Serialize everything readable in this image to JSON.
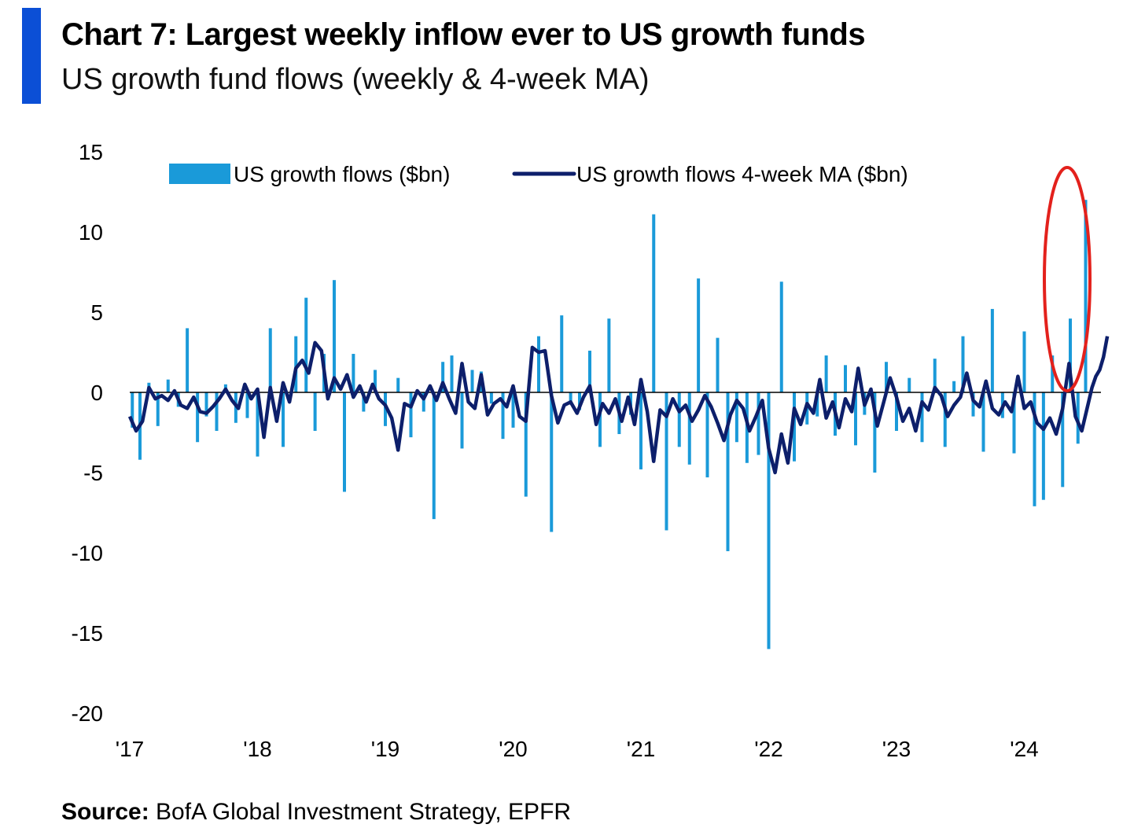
{
  "header": {
    "title": "Chart 7: Largest weekly inflow ever to US growth funds",
    "subtitle": "US growth fund flows (weekly & 4-week MA)"
  },
  "footer": {
    "source_label": "Source:",
    "source_text": " BofA Global Investment Strategy, EPFR"
  },
  "colors": {
    "accent": "#0b4fd6",
    "bars": "#1a9ad9",
    "ma_line": "#0d1f6b",
    "highlight": "#e3211c",
    "zero_line": "#000000"
  },
  "chart_data": {
    "type": "bar",
    "title": "",
    "xlabel": "",
    "ylabel": "",
    "ylim": [
      -20,
      15
    ],
    "yticks": [
      15,
      10,
      5,
      0,
      -5,
      -10,
      -15,
      -20
    ],
    "xticks": [
      "'17",
      "'18",
      "'19",
      "'20",
      "'21",
      "'22",
      "'23",
      "'24"
    ],
    "xlim": [
      2017.0,
      2024.6
    ],
    "legend_position": "top",
    "annotation": "red ellipse around latest record inflow (mid-2024)",
    "series": [
      {
        "name": "US growth flows ($bn)",
        "kind": "bar",
        "x": [
          2017.02,
          2017.08,
          2017.15,
          2017.22,
          2017.3,
          2017.38,
          2017.45,
          2017.53,
          2017.6,
          2017.68,
          2017.75,
          2017.83,
          2017.92,
          2018.0,
          2018.1,
          2018.2,
          2018.3,
          2018.38,
          2018.45,
          2018.52,
          2018.6,
          2018.68,
          2018.75,
          2018.83,
          2018.92,
          2019.0,
          2019.1,
          2019.2,
          2019.3,
          2019.38,
          2019.45,
          2019.52,
          2019.6,
          2019.68,
          2019.75,
          2019.83,
          2019.92,
          2020.0,
          2020.1,
          2020.2,
          2020.3,
          2020.38,
          2020.45,
          2020.52,
          2020.6,
          2020.68,
          2020.75,
          2020.83,
          2020.92,
          2021.0,
          2021.1,
          2021.2,
          2021.3,
          2021.38,
          2021.45,
          2021.52,
          2021.6,
          2021.68,
          2021.75,
          2021.83,
          2021.92,
          2022.0,
          2022.1,
          2022.2,
          2022.3,
          2022.38,
          2022.45,
          2022.52,
          2022.6,
          2022.68,
          2022.75,
          2022.83,
          2022.92,
          2023.0,
          2023.1,
          2023.2,
          2023.3,
          2023.38,
          2023.45,
          2023.52,
          2023.6,
          2023.68,
          2023.75,
          2023.83,
          2023.92,
          2024.0,
          2024.08,
          2024.15,
          2024.22,
          2024.3,
          2024.36,
          2024.42,
          2024.48
        ],
        "values": [
          -2.2,
          -4.2,
          0.6,
          -2.1,
          0.8,
          -0.9,
          4.0,
          -3.1,
          -1.5,
          -2.4,
          0.5,
          -1.9,
          -1.6,
          -4.0,
          4.0,
          -3.4,
          3.5,
          5.9,
          -2.4,
          2.4,
          7.0,
          -6.2,
          2.4,
          -1.2,
          1.4,
          -2.1,
          0.9,
          -2.8,
          -1.2,
          -7.9,
          1.9,
          2.3,
          -3.5,
          1.4,
          1.3,
          -0.7,
          -2.9,
          -2.2,
          -6.5,
          3.5,
          -8.7,
          4.8,
          -0.6,
          -1.1,
          2.6,
          -3.4,
          4.6,
          -2.6,
          -1.4,
          -4.8,
          11.1,
          -8.6,
          -3.4,
          -4.5,
          7.1,
          -5.3,
          3.4,
          -9.9,
          -3.1,
          -4.4,
          -3.9,
          -16.0,
          6.9,
          -4.3,
          -2.0,
          -1.5,
          2.3,
          -2.7,
          1.7,
          -3.3,
          -1.4,
          -5.0,
          1.9,
          -2.4,
          0.9,
          -3.1,
          2.1,
          -3.4,
          0.7,
          3.5,
          -1.5,
          -3.7,
          5.2,
          -1.6,
          -3.8,
          3.8,
          -7.1,
          -6.7,
          2.3,
          -5.9,
          4.6,
          -3.2,
          12.0
        ]
      },
      {
        "name": "US growth flows 4-week MA ($bn)",
        "kind": "line",
        "x": [
          2017.0,
          2017.05,
          2017.1,
          2017.15,
          2017.2,
          2017.25,
          2017.3,
          2017.35,
          2017.4,
          2017.45,
          2017.5,
          2017.55,
          2017.6,
          2017.65,
          2017.7,
          2017.75,
          2017.8,
          2017.85,
          2017.9,
          2017.95,
          2018.0,
          2018.05,
          2018.1,
          2018.15,
          2018.2,
          2018.25,
          2018.3,
          2018.35,
          2018.4,
          2018.45,
          2018.5,
          2018.55,
          2018.6,
          2018.65,
          2018.7,
          2018.75,
          2018.8,
          2018.85,
          2018.9,
          2018.95,
          2019.0,
          2019.05,
          2019.1,
          2019.15,
          2019.2,
          2019.25,
          2019.3,
          2019.35,
          2019.4,
          2019.45,
          2019.5,
          2019.55,
          2019.6,
          2019.65,
          2019.7,
          2019.75,
          2019.8,
          2019.85,
          2019.9,
          2019.95,
          2020.0,
          2020.05,
          2020.1,
          2020.15,
          2020.2,
          2020.25,
          2020.3,
          2020.35,
          2020.4,
          2020.45,
          2020.5,
          2020.55,
          2020.6,
          2020.65,
          2020.7,
          2020.75,
          2020.8,
          2020.85,
          2020.9,
          2020.95,
          2021.0,
          2021.05,
          2021.1,
          2021.15,
          2021.2,
          2021.25,
          2021.3,
          2021.35,
          2021.4,
          2021.45,
          2021.5,
          2021.55,
          2021.6,
          2021.65,
          2021.7,
          2021.75,
          2021.8,
          2021.85,
          2021.9,
          2021.95,
          2022.0,
          2022.05,
          2022.1,
          2022.15,
          2022.2,
          2022.25,
          2022.3,
          2022.35,
          2022.4,
          2022.45,
          2022.5,
          2022.55,
          2022.6,
          2022.65,
          2022.7,
          2022.75,
          2022.8,
          2022.85,
          2022.9,
          2022.95,
          2023.0,
          2023.05,
          2023.1,
          2023.15,
          2023.2,
          2023.25,
          2023.3,
          2023.35,
          2023.4,
          2023.45,
          2023.5,
          2023.55,
          2023.6,
          2023.65,
          2023.7,
          2023.75,
          2023.8,
          2023.85,
          2023.9,
          2023.95,
          2024.0,
          2024.05,
          2024.1,
          2024.15,
          2024.2,
          2024.25,
          2024.3,
          2024.35,
          2024.4,
          2024.45,
          2024.5,
          2024.53
        ],
        "values": [
          -1.5,
          -2.4,
          -1.8,
          0.3,
          -0.4,
          -0.2,
          -0.5,
          0.1,
          -0.8,
          -1.0,
          -0.3,
          -1.2,
          -1.3,
          -0.9,
          -0.4,
          0.2,
          -0.5,
          -1.0,
          0.5,
          -0.4,
          0.2,
          -2.8,
          0.3,
          -1.8,
          0.6,
          -0.6,
          1.5,
          2.0,
          1.2,
          3.1,
          2.6,
          -0.4,
          0.9,
          0.2,
          1.1,
          -0.3,
          0.4,
          -0.6,
          0.5,
          -0.4,
          -0.8,
          -1.6,
          -3.6,
          -0.7,
          -0.9,
          0.1,
          -0.4,
          0.4,
          -0.5,
          0.6,
          -0.4,
          -1.3,
          1.8,
          -0.6,
          -1.0,
          1.1,
          -1.4,
          -0.7,
          -0.4,
          -0.9,
          0.4,
          -1.5,
          -1.8,
          2.8,
          2.5,
          2.6,
          -0.2,
          -1.9,
          -0.8,
          -0.6,
          -1.3,
          -0.3,
          0.4,
          -2.0,
          -0.7,
          -1.3,
          -0.4,
          -1.8,
          -0.3,
          -2.0,
          0.8,
          -1.2,
          -4.3,
          -1.1,
          -1.5,
          -0.4,
          -1.2,
          -0.8,
          -1.8,
          -1.1,
          -0.2,
          -0.9,
          -1.9,
          -3.0,
          -1.4,
          -0.5,
          -1.0,
          -2.4,
          -1.5,
          -0.5,
          -3.5,
          -5.0,
          -2.6,
          -4.4,
          -1.0,
          -2.0,
          -0.7,
          -1.3,
          0.8,
          -1.6,
          -0.6,
          -2.2,
          -0.4,
          -1.2,
          1.5,
          -0.8,
          0.2,
          -2.1,
          -0.6,
          0.9,
          -0.3,
          -1.8,
          -1.0,
          -2.4,
          -0.6,
          -1.1,
          0.3,
          -0.2,
          -1.5,
          -0.8,
          -0.3,
          1.2,
          -0.5,
          -0.9,
          0.7,
          -1.0,
          -1.4,
          -0.6,
          -1.2,
          1.0,
          -1.0,
          -0.6,
          -1.9,
          -2.3,
          -1.6,
          -2.6,
          -1.0,
          1.8,
          -1.5,
          -2.4,
          -0.7,
          0.3
        ]
      },
      {
        "name": "",
        "kind": "line-tail",
        "x": [
          2024.53,
          2024.56,
          2024.59,
          2024.62,
          2024.65
        ],
        "values": [
          0.3,
          1.0,
          1.4,
          2.2,
          3.5
        ]
      }
    ]
  }
}
